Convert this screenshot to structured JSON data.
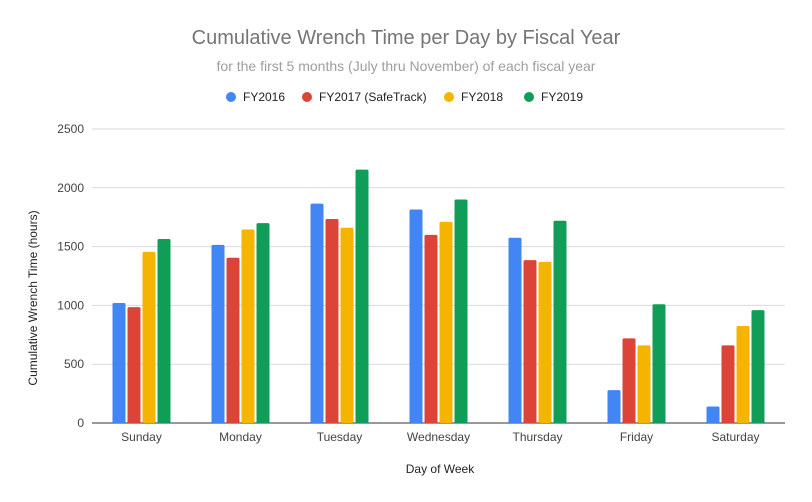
{
  "chart_data": {
    "type": "bar",
    "title": "Cumulative Wrench Time per Day by Fiscal Year",
    "subtitle": "for the first 5 months (July thru November) of each fiscal year",
    "xlabel": "Day of Week",
    "ylabel": "Cumulative Wrench Time (hours)",
    "ylim": [
      0,
      2500
    ],
    "yticks": [
      0,
      500,
      1000,
      1500,
      2000,
      2500
    ],
    "grid": true,
    "legend_position": "top",
    "categories": [
      "Sunday",
      "Monday",
      "Tuesday",
      "Wednesday",
      "Thursday",
      "Friday",
      "Saturday"
    ],
    "series": [
      {
        "name": "FY2016",
        "color": "#4285f4",
        "values": [
          1020,
          1515,
          1865,
          1815,
          1575,
          280,
          140
        ]
      },
      {
        "name": "FY2017 (SafeTrack)",
        "color": "#db4437",
        "values": [
          985,
          1405,
          1735,
          1600,
          1385,
          720,
          660
        ]
      },
      {
        "name": "FY2018",
        "color": "#f4b400",
        "values": [
          1455,
          1645,
          1660,
          1710,
          1370,
          660,
          825
        ]
      },
      {
        "name": "FY2019",
        "color": "#0f9d58",
        "values": [
          1565,
          1700,
          2155,
          1900,
          1720,
          1010,
          960
        ]
      }
    ]
  }
}
